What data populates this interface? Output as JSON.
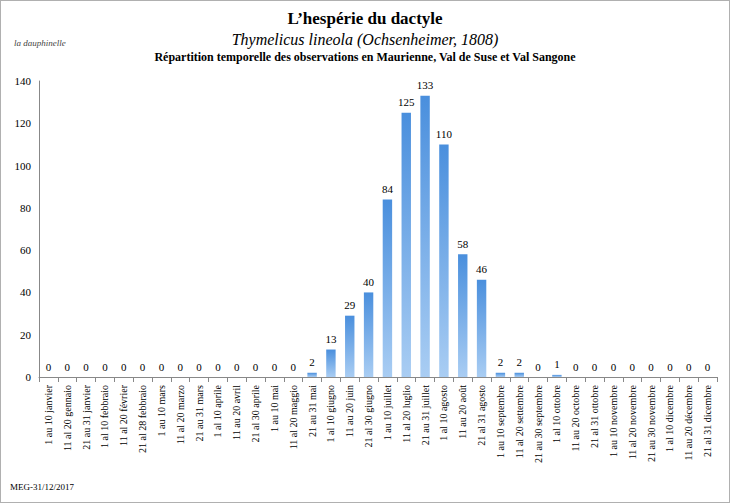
{
  "chart_data": {
    "type": "bar",
    "title": "L’hespérie du dactyle",
    "subtitle": "Thymelicus lineola (Ochsenheimer, 1808)",
    "annotations": [
      "Répartition temporelle des observations en Maurienne, Val de Suse et Val Sangone",
      "la dauphinelle",
      "MEG-31/12/2017"
    ],
    "categories": [
      "1 au 10 janvier",
      "11 al 20 gennaio",
      "21 au 31 janvier",
      "1 al 10 febbraio",
      "11 al 20 février",
      "21 al 28 febbraio",
      "1 au 10 mars",
      "11 al 20 marzo",
      "21 au 31 mars",
      "1 al 10 aprile",
      "11 au 20 avril",
      "21 al 30 aprile",
      "1 au 10 mai",
      "11 al 20 maggio",
      "21 au 31 mai",
      "1 al 10 giugno",
      "11 au 20 juin",
      "21 al 30 giugno",
      "1 au 10 juillet",
      "11 al 20 luglio",
      "21 au 31 juillet",
      "1 al 10 agosto",
      "11 au 20 août",
      "21 al 31 agosto",
      "1 au 10 septembre",
      "11 al 20 settembre",
      "21 au 30 septembre",
      "1 al 10 ottobre",
      "11 au 20 octobre",
      "21 al 31 ottobre",
      "1 au 10 novembre",
      "11 al 20 novembre",
      "21 au 30 novembre",
      "1 al 10 dicembre",
      "11 au 20 décembre",
      "21 al 31 dicembre"
    ],
    "values": [
      0,
      0,
      0,
      0,
      0,
      0,
      0,
      0,
      0,
      0,
      0,
      0,
      0,
      0,
      2,
      13,
      29,
      40,
      84,
      125,
      133,
      110,
      58,
      46,
      2,
      2,
      0,
      1,
      0,
      0,
      0,
      0,
      0,
      0,
      0,
      0
    ],
    "color": "#4a8fdd",
    "ylim": [
      0,
      140
    ],
    "yticks": [
      0,
      20,
      40,
      60,
      80,
      100,
      120,
      140
    ],
    "grid": false,
    "data_labels": true
  }
}
